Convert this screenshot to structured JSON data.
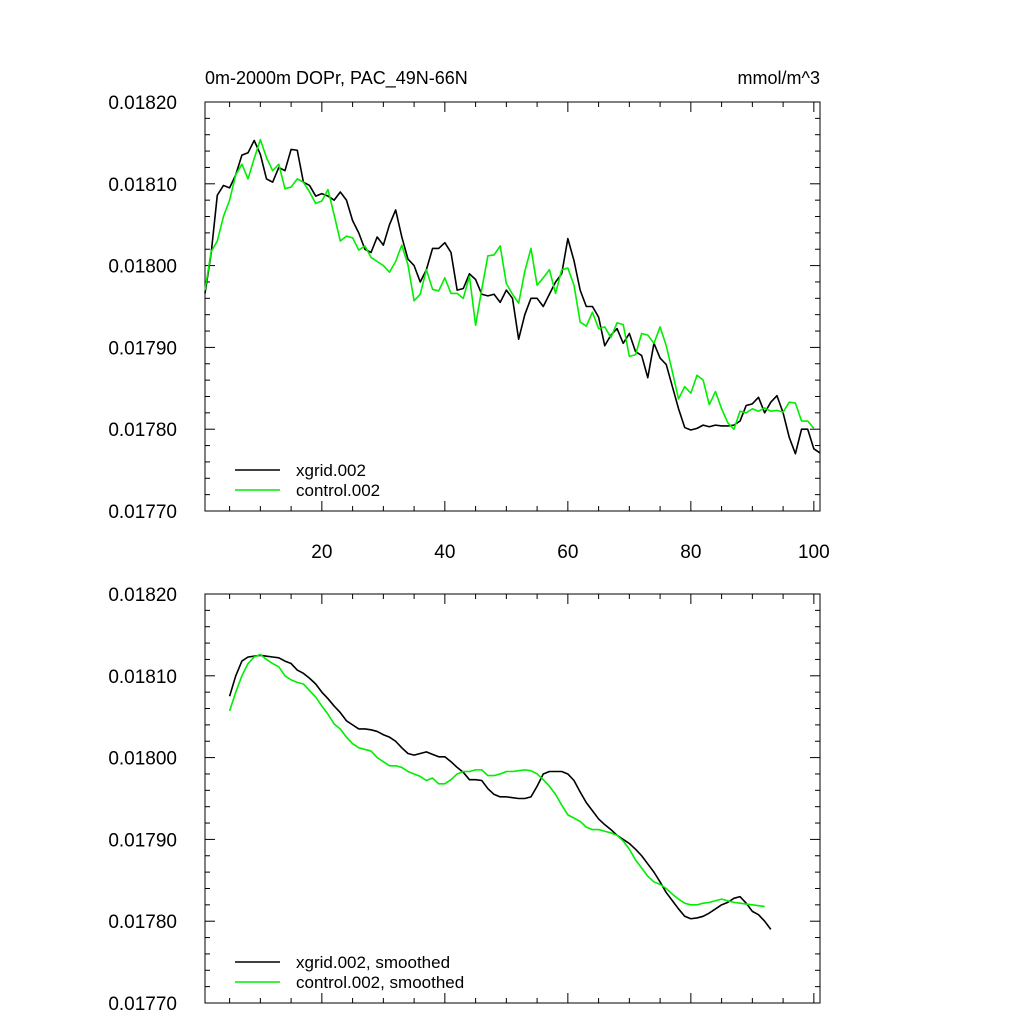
{
  "chart_data": [
    {
      "type": "line",
      "title": "0m-2000m DOPr, PAC_49N-66N",
      "units": "mmol/m^3",
      "xlabel": "",
      "ylabel": "",
      "xlim": [
        1,
        101
      ],
      "ylim": [
        0.0177,
        0.0182
      ],
      "x_ticks": [
        20,
        40,
        60,
        80,
        100
      ],
      "x_tick_labels": [
        "20",
        "40",
        "60",
        "80",
        "100"
      ],
      "y_ticks": [
        0.0177,
        0.0178,
        0.0179,
        0.018,
        0.0181,
        0.0182
      ],
      "y_tick_labels": [
        "0.01770",
        "0.01780",
        "0.01790",
        "0.01800",
        "0.01810",
        "0.01820"
      ],
      "legend_position": "bottom-left",
      "series": [
        {
          "name": "xgrid.002",
          "color": "#000000",
          "x_start": 1,
          "values": [
            0.017966,
            0.018015,
            0.018086,
            0.018098,
            0.018095,
            0.018111,
            0.018135,
            0.018138,
            0.018153,
            0.018136,
            0.018106,
            0.018102,
            0.01812,
            0.018116,
            0.018142,
            0.018141,
            0.018102,
            0.018098,
            0.018085,
            0.018088,
            0.018085,
            0.01808,
            0.01809,
            0.01808,
            0.018055,
            0.01804,
            0.01802,
            0.018016,
            0.018035,
            0.018025,
            0.01805,
            0.018068,
            0.018035,
            0.018008,
            0.018,
            0.01798,
            0.017995,
            0.018021,
            0.018021,
            0.018028,
            0.018016,
            0.01797,
            0.017972,
            0.01799,
            0.017983,
            0.017965,
            0.017963,
            0.017965,
            0.017955,
            0.01797,
            0.01796,
            0.01791,
            0.01794,
            0.01796,
            0.01796,
            0.01795,
            0.017965,
            0.01798,
            0.01799,
            0.018033,
            0.018006,
            0.01797,
            0.01795,
            0.01795,
            0.017937,
            0.017902,
            0.017915,
            0.017923,
            0.017905,
            0.017917,
            0.017895,
            0.01789,
            0.017863,
            0.017905,
            0.017887,
            0.017879,
            0.017852,
            0.017825,
            0.017802,
            0.017799,
            0.017801,
            0.017805,
            0.017803,
            0.017805,
            0.017804,
            0.017804,
            0.017805,
            0.01781,
            0.017829,
            0.017831,
            0.017839,
            0.01782,
            0.017833,
            0.017841,
            0.01782,
            0.01779,
            0.01777,
            0.0178,
            0.0178,
            0.017776,
            0.017771
          ]
        },
        {
          "name": "control.002",
          "color": "#00ee00",
          "x_start": 1,
          "values": [
            0.01797,
            0.018017,
            0.01803,
            0.01806,
            0.01808,
            0.018111,
            0.018124,
            0.018106,
            0.018131,
            0.018154,
            0.018132,
            0.018116,
            0.018124,
            0.018094,
            0.018096,
            0.018106,
            0.018102,
            0.01809,
            0.018076,
            0.018079,
            0.018093,
            0.018062,
            0.01803,
            0.018036,
            0.018034,
            0.018019,
            0.018024,
            0.01801,
            0.018005,
            0.018,
            0.017992,
            0.018005,
            0.018025,
            0.018001,
            0.017957,
            0.017965,
            0.017995,
            0.017971,
            0.017969,
            0.017985,
            0.017966,
            0.017966,
            0.01796,
            0.017987,
            0.017927,
            0.017971,
            0.018012,
            0.018013,
            0.018024,
            0.017978,
            0.017965,
            0.017954,
            0.017993,
            0.018021,
            0.017976,
            0.017985,
            0.017995,
            0.017966,
            0.017995,
            0.017997,
            0.017976,
            0.017931,
            0.017926,
            0.017943,
            0.017923,
            0.017925,
            0.017912,
            0.01793,
            0.017928,
            0.017889,
            0.017891,
            0.017917,
            0.017915,
            0.017905,
            0.017925,
            0.017902,
            0.01787,
            0.017837,
            0.017852,
            0.017844,
            0.017866,
            0.01786,
            0.01783,
            0.017846,
            0.017825,
            0.017808,
            0.0178,
            0.017822,
            0.01782,
            0.017825,
            0.017822,
            0.017826,
            0.017822,
            0.017823,
            0.017821,
            0.017833,
            0.017832,
            0.01781,
            0.01781,
            0.017801
          ]
        }
      ]
    },
    {
      "type": "line",
      "title": "",
      "xlabel": "",
      "ylabel": "",
      "xlim": [
        1,
        101
      ],
      "ylim": [
        0.0177,
        0.0182
      ],
      "x_ticks": [
        20,
        40,
        60,
        80,
        100
      ],
      "y_ticks": [
        0.0177,
        0.0178,
        0.0179,
        0.018,
        0.0181,
        0.0182
      ],
      "y_tick_labels": [
        "0.01770",
        "0.01780",
        "0.01790",
        "0.01800",
        "0.01810",
        "0.01820"
      ],
      "legend_position": "bottom-left",
      "series": [
        {
          "name": "xgrid.002, smoothed",
          "color": "#000000",
          "x_start": 5,
          "values": [
            0.018075,
            0.0181,
            0.018118,
            0.018123,
            0.018124,
            0.018125,
            0.018124,
            0.018123,
            0.018122,
            0.018118,
            0.018115,
            0.018107,
            0.018103,
            0.018097,
            0.01809,
            0.01808,
            0.018072,
            0.018063,
            0.018055,
            0.018045,
            0.01804,
            0.018035,
            0.018035,
            0.018034,
            0.018032,
            0.018028,
            0.018025,
            0.01802,
            0.018012,
            0.018005,
            0.018003,
            0.018005,
            0.018007,
            0.018004,
            0.018001,
            0.018001,
            0.017995,
            0.017988,
            0.017982,
            0.017973,
            0.017973,
            0.017972,
            0.017962,
            0.017955,
            0.017952,
            0.017952,
            0.017951,
            0.01795,
            0.01795,
            0.017952,
            0.017965,
            0.01798,
            0.017983,
            0.017983,
            0.017983,
            0.01798,
            0.017972,
            0.017958,
            0.017945,
            0.017935,
            0.017925,
            0.017918,
            0.017912,
            0.017905,
            0.0179,
            0.017895,
            0.017888,
            0.01788,
            0.01787,
            0.01786,
            0.017848,
            0.017835,
            0.017825,
            0.017815,
            0.017806,
            0.017803,
            0.017804,
            0.017806,
            0.01781,
            0.017815,
            0.01782,
            0.017823,
            0.017828,
            0.01783,
            0.017822,
            0.017812,
            0.017808,
            0.0178,
            0.01779
          ]
        },
        {
          "name": "control.002, smoothed",
          "color": "#00ee00",
          "x_start": 5,
          "values": [
            0.018057,
            0.01808,
            0.0181,
            0.018115,
            0.018123,
            0.018126,
            0.01812,
            0.018115,
            0.018111,
            0.0181,
            0.018095,
            0.018092,
            0.01809,
            0.018082,
            0.018074,
            0.018063,
            0.018053,
            0.018041,
            0.018035,
            0.018025,
            0.018017,
            0.018012,
            0.01801,
            0.018008,
            0.018,
            0.017995,
            0.01799,
            0.01799,
            0.017988,
            0.017983,
            0.01798,
            0.017977,
            0.017972,
            0.017975,
            0.017968,
            0.017968,
            0.017973,
            0.01798,
            0.017983,
            0.017983,
            0.017985,
            0.017985,
            0.017978,
            0.017978,
            0.01798,
            0.017983,
            0.017983,
            0.017984,
            0.017985,
            0.017984,
            0.01798,
            0.017973,
            0.017965,
            0.017955,
            0.017942,
            0.01793,
            0.017926,
            0.017922,
            0.017915,
            0.017912,
            0.017912,
            0.01791,
            0.017908,
            0.017905,
            0.017898,
            0.017888,
            0.017875,
            0.017865,
            0.017855,
            0.017848,
            0.017845,
            0.01784,
            0.017833,
            0.017827,
            0.017822,
            0.01782,
            0.01782,
            0.017822,
            0.017823,
            0.017825,
            0.017827,
            0.017825,
            0.017823,
            0.017822,
            0.017821,
            0.01782,
            0.017819,
            0.017818
          ]
        }
      ]
    }
  ]
}
